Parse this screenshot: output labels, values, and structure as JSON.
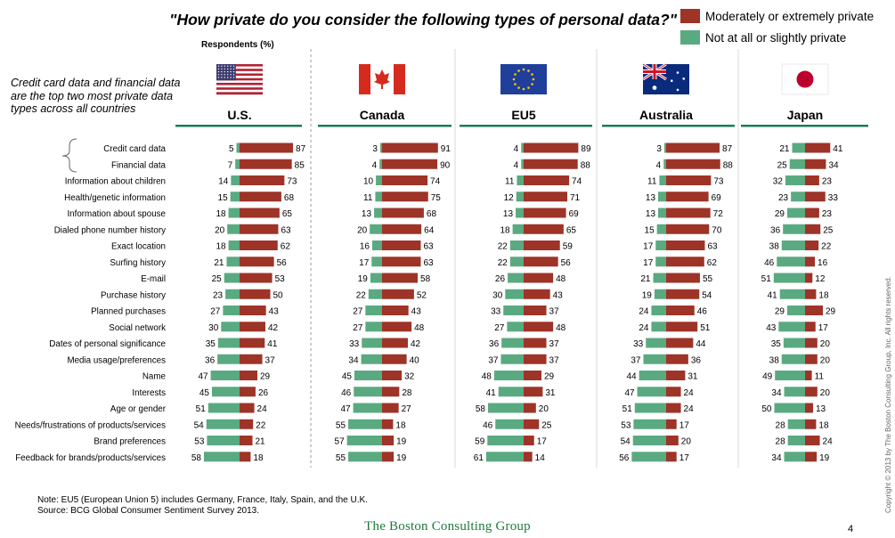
{
  "title": "\"How private do you consider the following types of personal data?\"",
  "respondents_label": "Respondents (%)",
  "callout": "Credit card data and financial data are the top two most private data types across all countries",
  "note": "Note: EU5 (European Union 5) includes Germany, France, Italy, Spain, and the U.K.",
  "source": "Source: BCG Global Consumer Sentiment Survey 2013.",
  "logo_text": "The Boston Consulting Group",
  "page_number": "4",
  "copyright": "Copyright © 2013 by The Boston Consulting Group, Inc. All rights reserved.",
  "colors": {
    "private": "#9e3327",
    "not_private": "#5aaa81",
    "header_rule": "#1a7a5a"
  },
  "flag_icons": [
    "us-flag-icon",
    "canada-flag-icon",
    "eu-flag-icon",
    "australia-flag-icon",
    "japan-flag-icon"
  ],
  "chart_data": {
    "type": "bar",
    "orientation": "horizontal",
    "stacking": "diverging",
    "legend_position": "top-right",
    "categories": [
      "Credit card data",
      "Financial data",
      "Information about children",
      "Health/genetic information",
      "Information about spouse",
      "Dialed phone number history",
      "Exact location",
      "Surfing history",
      "E-mail",
      "Purchase history",
      "Planned purchases",
      "Social network",
      "Dates of personal significance",
      "Media usage/preferences",
      "Name",
      "Interests",
      "Age or gender",
      "Needs/frustrations of products/services",
      "Brand preferences",
      "Feedback for brands/products/services"
    ],
    "series_names": [
      "Moderately or extremely private",
      "Not at all or slightly private"
    ],
    "panels": [
      {
        "name": "U.S.",
        "private": [
          87,
          85,
          73,
          68,
          65,
          63,
          62,
          56,
          53,
          50,
          43,
          42,
          41,
          37,
          29,
          26,
          24,
          22,
          21,
          18
        ],
        "not_private": [
          5,
          7,
          14,
          15,
          18,
          20,
          18,
          21,
          25,
          23,
          27,
          30,
          35,
          36,
          47,
          45,
          51,
          54,
          53,
          58
        ]
      },
      {
        "name": "Canada",
        "private": [
          91,
          90,
          74,
          75,
          68,
          64,
          63,
          63,
          58,
          52,
          43,
          48,
          42,
          40,
          32,
          28,
          27,
          18,
          19,
          19
        ],
        "not_private": [
          3,
          4,
          10,
          11,
          13,
          20,
          16,
          17,
          19,
          22,
          27,
          27,
          33,
          34,
          45,
          46,
          47,
          55,
          57,
          55
        ]
      },
      {
        "name": "EU5",
        "private": [
          89,
          88,
          74,
          71,
          69,
          65,
          59,
          56,
          48,
          43,
          37,
          48,
          37,
          37,
          29,
          31,
          20,
          25,
          17,
          14
        ],
        "not_private": [
          4,
          4,
          11,
          12,
          13,
          18,
          22,
          22,
          26,
          30,
          33,
          27,
          36,
          37,
          48,
          41,
          58,
          46,
          59,
          61
        ]
      },
      {
        "name": "Australia",
        "private": [
          87,
          88,
          73,
          69,
          72,
          70,
          63,
          62,
          55,
          54,
          46,
          51,
          44,
          36,
          31,
          24,
          24,
          17,
          20,
          17
        ],
        "not_private": [
          3,
          4,
          11,
          13,
          13,
          15,
          17,
          17,
          21,
          19,
          24,
          24,
          33,
          37,
          44,
          47,
          51,
          53,
          54,
          56
        ]
      },
      {
        "name": "Japan",
        "private": [
          41,
          34,
          23,
          33,
          23,
          25,
          22,
          16,
          12,
          18,
          29,
          17,
          20,
          20,
          11,
          20,
          13,
          18,
          24,
          19
        ],
        "not_private": [
          21,
          25,
          32,
          23,
          29,
          36,
          38,
          46,
          51,
          41,
          29,
          43,
          35,
          38,
          49,
          34,
          50,
          28,
          28,
          34
        ]
      }
    ]
  }
}
